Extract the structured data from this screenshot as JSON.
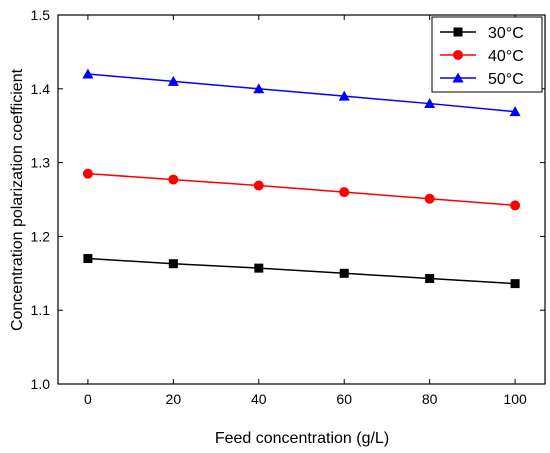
{
  "chart_data": {
    "type": "line",
    "title": "",
    "xlabel": "Feed concentration (g/L)",
    "ylabel": "Concentration polarization coefficient",
    "xlim": [
      -7,
      107
    ],
    "ylim": [
      1.0,
      1.5
    ],
    "x_ticks": [
      0,
      20,
      40,
      60,
      80,
      100
    ],
    "y_ticks": [
      1.0,
      1.1,
      1.2,
      1.3,
      1.4,
      1.5
    ],
    "x_tick_labels": [
      "0",
      "20",
      "40",
      "60",
      "80",
      "100"
    ],
    "y_tick_labels": [
      "1.0",
      "1.1",
      "1.2",
      "1.3",
      "1.4",
      "1.5"
    ],
    "grid": false,
    "legend_position": "top-right",
    "x": [
      0,
      20,
      40,
      60,
      80,
      100
    ],
    "series": [
      {
        "name": "30°C",
        "color": "#000000",
        "marker": "square",
        "values": [
          1.17,
          1.163,
          1.157,
          1.15,
          1.143,
          1.136
        ]
      },
      {
        "name": "40°C",
        "color": "#ff0000",
        "marker": "circle",
        "values": [
          1.285,
          1.277,
          1.269,
          1.26,
          1.251,
          1.242
        ]
      },
      {
        "name": "50°C",
        "color": "#0000ff",
        "marker": "triangle",
        "values": [
          1.42,
          1.41,
          1.4,
          1.39,
          1.38,
          1.369
        ]
      }
    ]
  }
}
